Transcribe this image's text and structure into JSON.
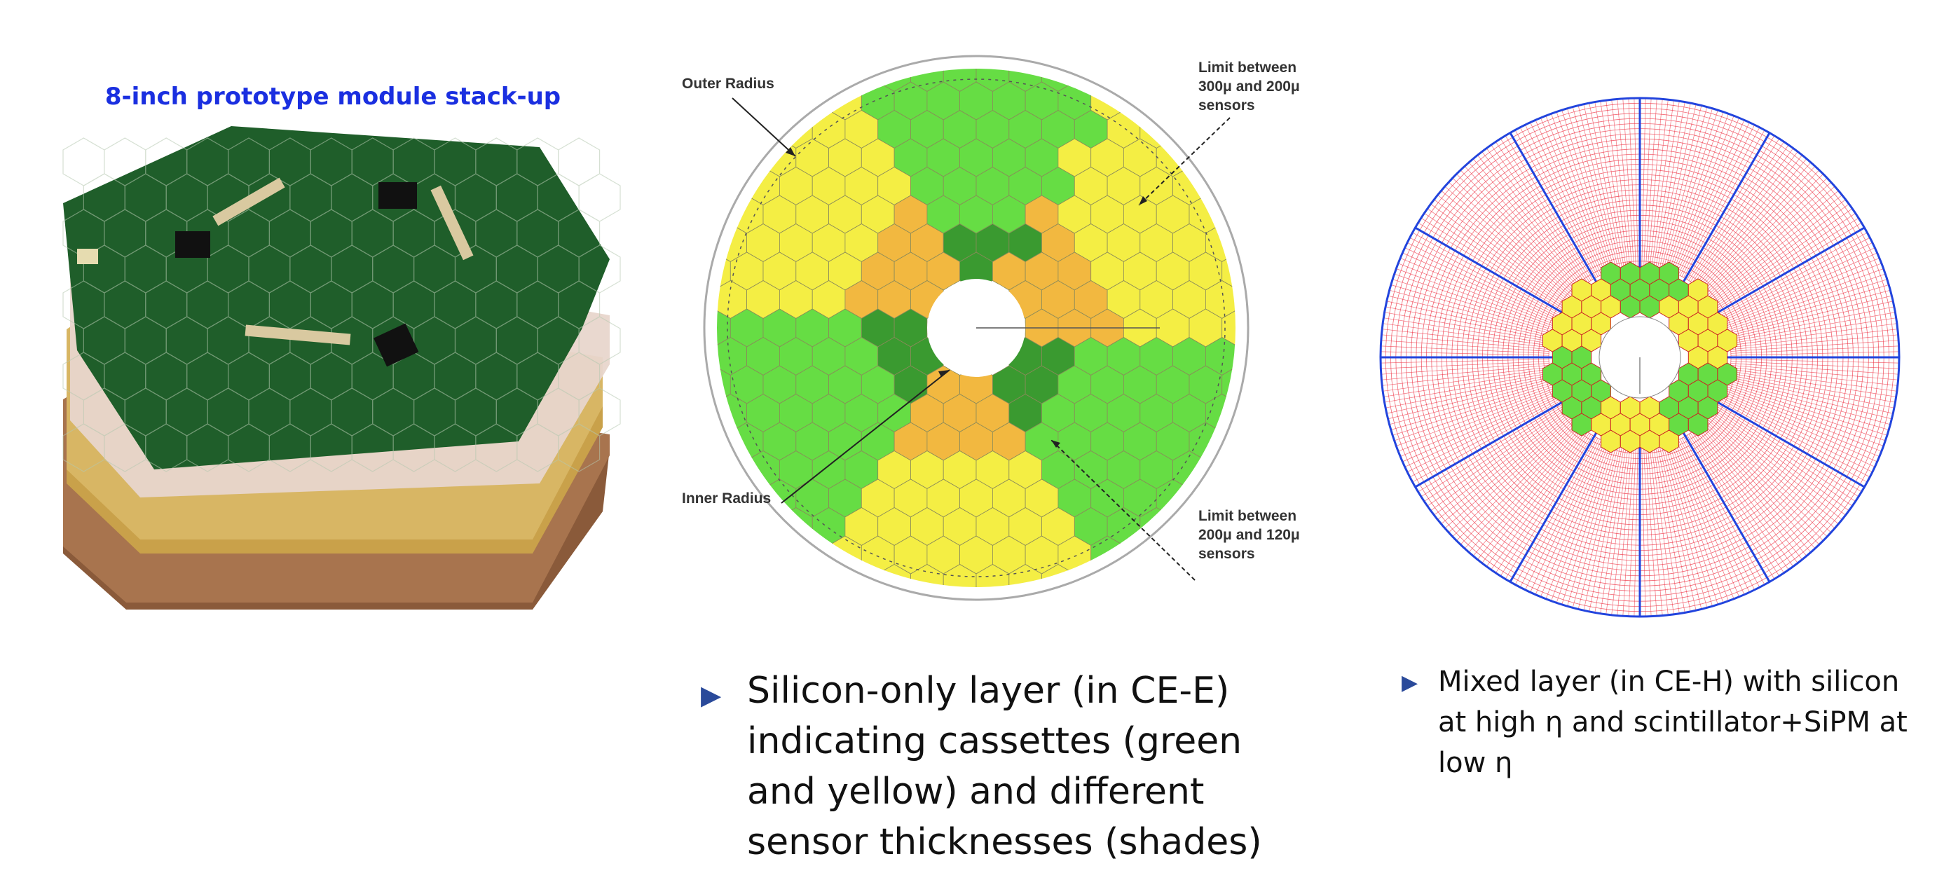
{
  "left": {
    "title": "8-inch prototype module stack-up"
  },
  "middle": {
    "labels": {
      "outer_radius": "Outer Radius",
      "inner_radius": "Inner Radius",
      "limit_300_200_l1": "Limit between",
      "limit_300_200_l2": "300μ and 200μ",
      "limit_300_200_l3": "sensors",
      "limit_200_120_l1": "Limit between",
      "limit_200_120_l2": "200μ and 120μ",
      "limit_200_120_l3": "sensors"
    },
    "caption": "Silicon-only layer (in CE-E) indicating cassettes (green and yellow) and different sensor thicknesses (shades)"
  },
  "right": {
    "caption": "Mixed layer (in CE-H) with silicon at high η and scintillator+SiPM at low η"
  },
  "colors": {
    "green": "#66dd44",
    "dark_green": "#3a9a30",
    "yellow": "#f4ee44",
    "orange": "#f2b840",
    "scint_red": "#ee3344",
    "blue_line": "#2244dd",
    "pcb_green": "#1e5a28",
    "bullet_blue": "#2a4a9a",
    "title_blue": "#1a2fe0"
  }
}
